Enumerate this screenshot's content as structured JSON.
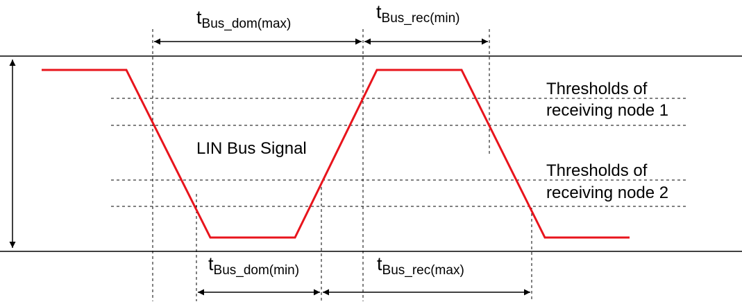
{
  "colors": {
    "signal": "#e8141c",
    "ink": "#000000"
  },
  "labels": {
    "signal_name": "LIN Bus Signal",
    "node1_line1": "Thresholds of",
    "node1_line2": "receiving node 1",
    "node2_line1": "Thresholds of",
    "node2_line2": "receiving node 2"
  },
  "timings": {
    "dom_max": {
      "base": "t",
      "sub": "Bus_dom(max)"
    },
    "rec_min": {
      "base": "t",
      "sub": "Bus_rec(min)"
    },
    "dom_min": {
      "base": "t",
      "sub": "Bus_dom(min)"
    },
    "rec_max": {
      "base": "t",
      "sub": "Bus_rec(max)"
    }
  }
}
